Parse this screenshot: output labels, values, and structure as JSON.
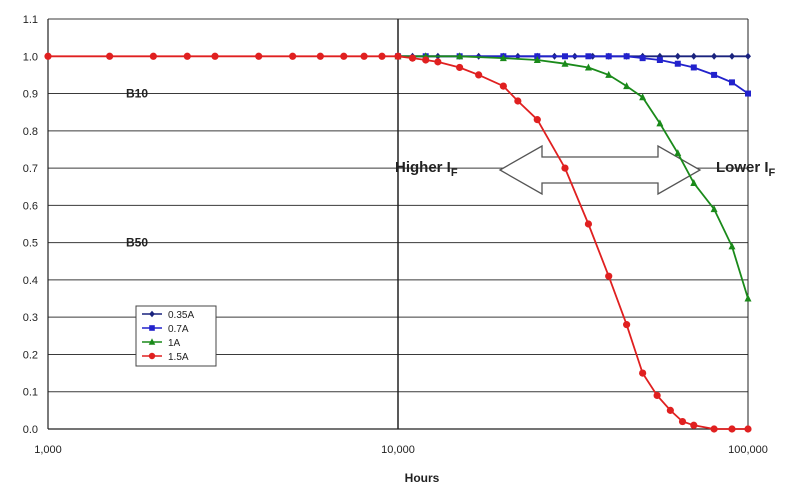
{
  "chart_data": {
    "type": "line",
    "xscale": "log",
    "xlim": [
      1000,
      100000
    ],
    "ylim": [
      0.0,
      1.1
    ],
    "yticks": [
      "0.0",
      "0.1",
      "0.2",
      "0.3",
      "0.4",
      "0.5",
      "0.6",
      "0.7",
      "0.8",
      "0.9",
      "1.0",
      "1.1"
    ],
    "xticks": [
      "1,000",
      "10,000",
      "100,000"
    ],
    "xlabel": "Hours",
    "grid": "horizontal",
    "reference_labels": [
      "B10",
      "B50"
    ],
    "annotations": {
      "left": {
        "main": "Higher I",
        "sub": "F"
      },
      "right": {
        "main": "Lower I",
        "sub": "F"
      }
    },
    "legend_position": "lower-left",
    "series": [
      {
        "name": "0.35A",
        "color": "#1a237e",
        "marker": "diamond",
        "x": [
          10000,
          11000,
          12000,
          13000,
          15000,
          17000,
          20000,
          22000,
          25000,
          28000,
          32000,
          36000,
          40000,
          45000,
          50000,
          56000,
          63000,
          70000,
          80000,
          90000,
          100000
        ],
        "y": [
          1.0,
          1.0,
          1.0,
          1.0,
          1.0,
          1.0,
          1.0,
          1.0,
          1.0,
          1.0,
          1.0,
          1.0,
          1.0,
          1.0,
          1.0,
          1.0,
          1.0,
          1.0,
          1.0,
          1.0,
          1.0
        ]
      },
      {
        "name": "0.7A",
        "color": "#2222cc",
        "marker": "square",
        "x": [
          10000,
          12000,
          15000,
          20000,
          25000,
          30000,
          35000,
          40000,
          45000,
          50000,
          56000,
          63000,
          70000,
          80000,
          90000,
          100000
        ],
        "y": [
          1.0,
          1.0,
          1.0,
          1.0,
          1.0,
          1.0,
          1.0,
          1.0,
          1.0,
          0.995,
          0.99,
          0.98,
          0.97,
          0.95,
          0.93,
          0.9
        ]
      },
      {
        "name": "1A",
        "color": "#1a8a1a",
        "marker": "triangle",
        "x": [
          10000,
          12000,
          15000,
          20000,
          25000,
          30000,
          35000,
          40000,
          45000,
          50000,
          56000,
          63000,
          70000,
          80000,
          90000,
          100000
        ],
        "y": [
          1.0,
          1.0,
          1.0,
          0.995,
          0.99,
          0.98,
          0.97,
          0.95,
          0.92,
          0.89,
          0.82,
          0.74,
          0.66,
          0.59,
          0.49,
          0.35
        ]
      },
      {
        "name": "1.5A",
        "color": "#e02020",
        "marker": "circle",
        "x": [
          1000,
          1500,
          2000,
          2500,
          3000,
          4000,
          5000,
          6000,
          7000,
          8000,
          9000,
          10000,
          11000,
          12000,
          13000,
          15000,
          17000,
          20000,
          22000,
          25000,
          30000,
          35000,
          40000,
          45000,
          50000,
          55000,
          60000,
          65000,
          70000,
          80000,
          90000,
          100000
        ],
        "y": [
          1.0,
          1.0,
          1.0,
          1.0,
          1.0,
          1.0,
          1.0,
          1.0,
          1.0,
          1.0,
          1.0,
          1.0,
          0.995,
          0.99,
          0.985,
          0.97,
          0.95,
          0.92,
          0.88,
          0.83,
          0.7,
          0.55,
          0.41,
          0.28,
          0.15,
          0.09,
          0.05,
          0.02,
          0.01,
          0.0,
          0.0,
          0.0
        ]
      }
    ]
  }
}
